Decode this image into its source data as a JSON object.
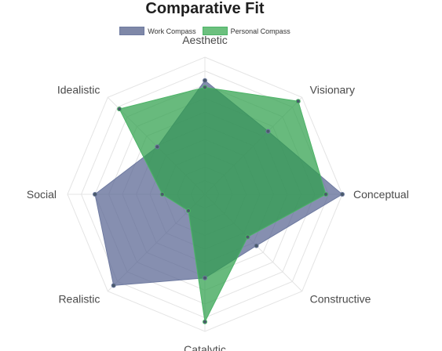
{
  "chart_data": {
    "type": "radar",
    "title": "Comparative Fit",
    "axes": [
      "Aesthetic",
      "Visionary",
      "Conceptual",
      "Constructive",
      "Catalytic",
      "Realistic",
      "Social",
      "Idealistic"
    ],
    "r_range": [
      0,
      10
    ],
    "grid": true,
    "legend_position": "top-center",
    "series": [
      {
        "name": "Work Compass",
        "color": "#6e7aa0",
        "values": [
          8.3,
          6.5,
          10,
          5.3,
          6.1,
          9.4,
          8.0,
          4.9
        ]
      },
      {
        "name": "Personal Compass",
        "color": "#4cb467",
        "values": [
          7.8,
          9.6,
          8.8,
          4.4,
          9.3,
          1.7,
          3.1,
          8.8
        ]
      }
    ]
  }
}
